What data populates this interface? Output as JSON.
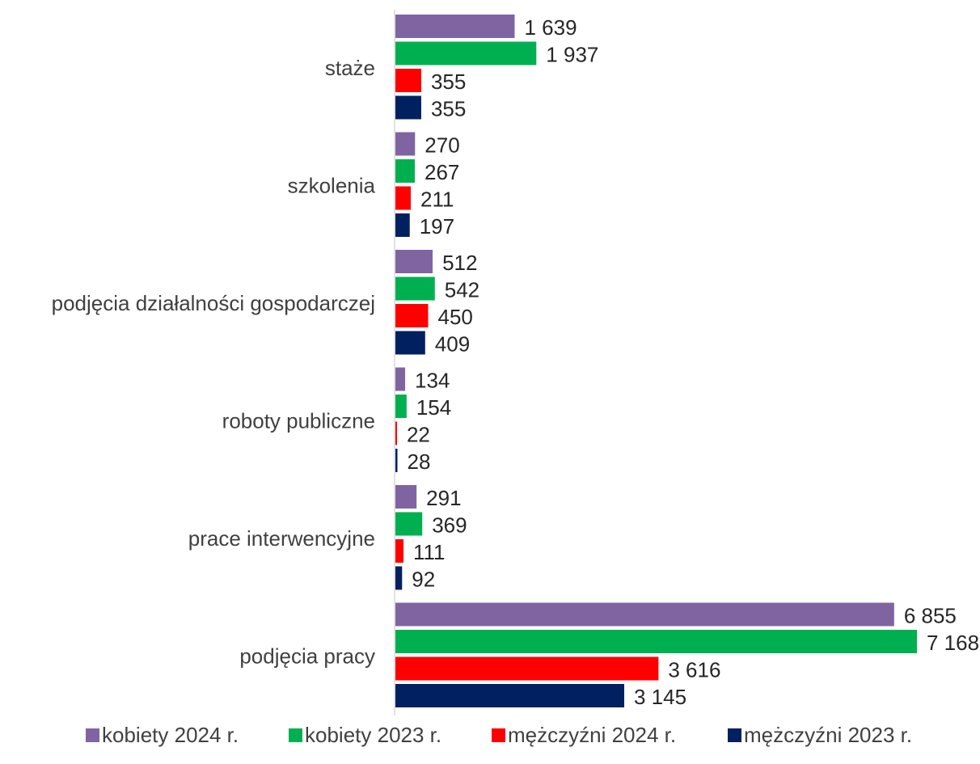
{
  "chart_data": {
    "type": "bar",
    "orientation": "horizontal",
    "title": "",
    "xlabel": "",
    "ylabel": "",
    "grid": false,
    "legend_position": "bottom",
    "categories": [
      "stażе",
      "szkolenia",
      "podjęcia działalności gospodarczej",
      "roboty publiczne",
      "prace interwencyjne",
      "podjęcia pracy"
    ],
    "series": [
      {
        "name": "kobiety 2024 r.",
        "color": "#8064A2",
        "values": [
          1639,
          270,
          512,
          134,
          291,
          6855
        ],
        "labels": [
          "1 639",
          "270",
          "512",
          "134",
          "291",
          "6 855"
        ]
      },
      {
        "name": "kobiety 2023 r.",
        "color": "#00B050",
        "values": [
          1937,
          267,
          542,
          154,
          369,
          7168
        ],
        "labels": [
          "1 937",
          "267",
          "542",
          "154",
          "369",
          "7 168"
        ]
      },
      {
        "name": "mężczyźni 2024 r.",
        "color": "#FF0000",
        "values": [
          355,
          211,
          450,
          22,
          111,
          3616
        ],
        "labels": [
          "355",
          "211",
          "450",
          "22",
          "111",
          "3 616"
        ]
      },
      {
        "name": "mężczyźni 2023 r.",
        "color": "#002060",
        "values": [
          355,
          197,
          409,
          28,
          92,
          3145
        ],
        "labels": [
          "355",
          "197",
          "409",
          "28",
          "92",
          "3 145"
        ]
      }
    ],
    "xlim": [
      0,
      7168
    ]
  }
}
